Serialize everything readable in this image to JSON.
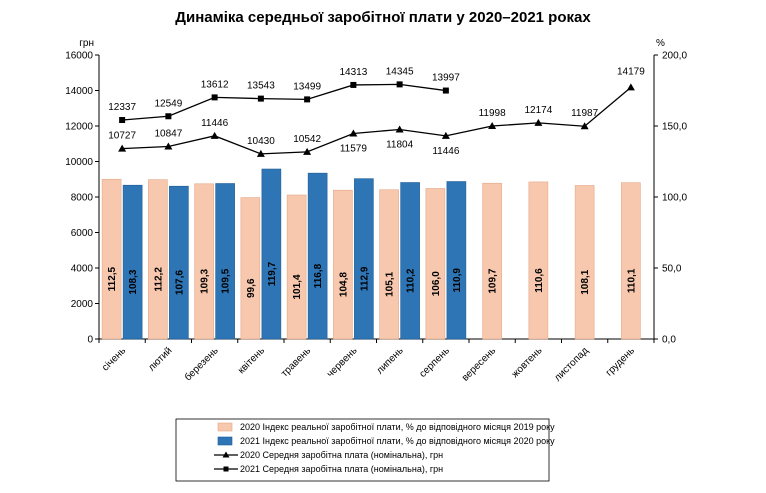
{
  "chart_data": {
    "type": "bar",
    "title": "Динаміка середньої заробітної плати у 2020–2021 роках",
    "y_left_unit": "грн",
    "y_right_unit": "%",
    "y_left_range": [
      0,
      16000
    ],
    "y_left_ticks": [
      "0",
      "2000",
      "4000",
      "6000",
      "8000",
      "10000",
      "12000",
      "14000",
      "16000"
    ],
    "y_right_range": [
      0,
      200
    ],
    "y_right_ticks": [
      "0,0",
      "50,0",
      "100,0",
      "150,0",
      "200,0"
    ],
    "categories": [
      "січень",
      "лютий",
      "березень",
      "квітень",
      "травень",
      "червень",
      "липень",
      "серпень",
      "вересень",
      "жовтень",
      "листопад",
      "грудень"
    ],
    "series": [
      {
        "name": "2020 Індекс реальної заробітної плати, % до відповідного місяця 2019 року",
        "kind": "bar",
        "axis": "right",
        "color": "#F7C8AE",
        "values": [
          112.5,
          112.2,
          109.3,
          99.6,
          101.4,
          104.8,
          105.1,
          106.0,
          109.7,
          110.6,
          108.1,
          110.1
        ],
        "labels": [
          "112,5",
          "112,2",
          "109,3",
          "99,6",
          "101,4",
          "104,8",
          "105,1",
          "106,0",
          "109,7",
          "110,6",
          "108,1",
          "110,1"
        ]
      },
      {
        "name": "2021 Індекс реальної заробітної плати, % до відповідного місяця 2020 року",
        "kind": "bar",
        "axis": "right",
        "color": "#2E75B6",
        "values": [
          108.3,
          107.6,
          109.5,
          119.7,
          116.8,
          112.9,
          110.2,
          110.9,
          null,
          null,
          null,
          null
        ],
        "labels": [
          "108,3",
          "107,6",
          "109,5",
          "119,7",
          "116,8",
          "112,9",
          "110,2",
          "110,9",
          null,
          null,
          null,
          null
        ]
      },
      {
        "name": "2020 Середня заробітна плата (номінальна), грн",
        "kind": "line",
        "axis": "left",
        "marker": "triangle",
        "color": "#000000",
        "values": [
          10727,
          10847,
          11446,
          10430,
          10542,
          11579,
          11804,
          11446,
          11998,
          12174,
          11987,
          14179
        ],
        "labels": [
          "10727",
          "10847",
          "11446",
          "10430",
          "10542",
          "11579",
          "11804",
          "11446",
          "11998",
          "12174",
          "11987",
          "14179"
        ]
      },
      {
        "name": "2021 Середня заробітна плата (номінальна), грн",
        "kind": "line",
        "axis": "left",
        "marker": "square",
        "color": "#000000",
        "values": [
          12337,
          12549,
          13612,
          13543,
          13499,
          14313,
          14345,
          13997,
          null,
          null,
          null,
          null
        ],
        "labels": [
          "12337",
          "12549",
          "13612",
          "13543",
          "13499",
          "14313",
          "14345",
          "13997",
          null,
          null,
          null,
          null
        ]
      }
    ],
    "grid": false,
    "legend_position": "bottom"
  }
}
